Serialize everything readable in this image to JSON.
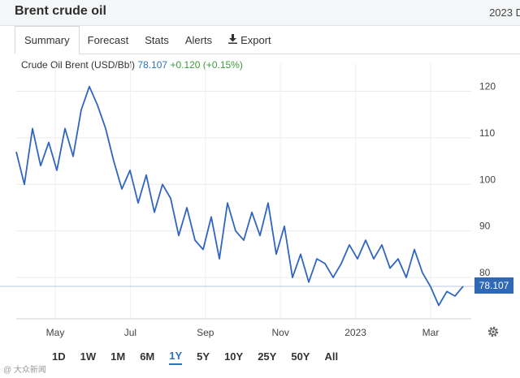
{
  "page": {
    "title": "Brent crude oil",
    "date_fragment": "2023 D"
  },
  "tabs": [
    {
      "label": "Summary",
      "active": true
    },
    {
      "label": "Forecast"
    },
    {
      "label": "Stats"
    },
    {
      "label": "Alerts"
    },
    {
      "label": "Export",
      "icon": "download-icon"
    }
  ],
  "quote": {
    "name": "Crude Oil Brent (USD/Bbl)",
    "price": "78.107",
    "change": "+0.120 (+0.15%)"
  },
  "ranges": [
    "1D",
    "1W",
    "1M",
    "6M",
    "1Y",
    "5Y",
    "10Y",
    "25Y",
    "50Y",
    "All"
  ],
  "selected_range": "1Y",
  "watermark": "@ 大众新闻",
  "colors": {
    "line": "#3165c0",
    "price_badge": "#2f68b5",
    "positive": "#3a9c3a",
    "accent": "#2e6fbf"
  },
  "chart_data": {
    "type": "line",
    "title": "Crude Oil Brent (USD/Bbl)",
    "x_tick_labels": [
      "May",
      "Jul",
      "Sep",
      "Nov",
      "2023",
      "Mar"
    ],
    "y_tick_labels": [
      "80",
      "90",
      "100",
      "110",
      "120"
    ],
    "ylim": [
      72,
      126
    ],
    "last_value": 78.107,
    "last_value_label": "78.107",
    "x_range": [
      0,
      110
    ],
    "series": [
      {
        "name": "Brent",
        "x": [
          0,
          2,
          4,
          6,
          8,
          10,
          12,
          14,
          16,
          18,
          20,
          22,
          24,
          26,
          28,
          30,
          32,
          34,
          36,
          38,
          40,
          42,
          44,
          46,
          48,
          50,
          52,
          54,
          56,
          58,
          60,
          62,
          64,
          66,
          68,
          70,
          72,
          74,
          76,
          78,
          80,
          82,
          84,
          86,
          88,
          90,
          92,
          94,
          96,
          98,
          100,
          102,
          104,
          106,
          108,
          110
        ],
        "values": [
          107,
          100,
          112,
          104,
          109,
          103,
          112,
          106,
          116,
          121,
          117,
          112,
          105,
          99,
          103,
          96,
          102,
          94,
          100,
          97,
          89,
          95,
          88,
          86,
          93,
          84,
          96,
          90,
          88,
          94,
          89,
          96,
          85,
          91,
          80,
          85,
          79,
          84,
          83,
          80,
          83,
          87,
          84,
          88,
          84,
          87,
          82,
          84,
          80,
          86,
          81,
          78,
          74,
          77,
          76,
          78.107
        ]
      }
    ]
  }
}
